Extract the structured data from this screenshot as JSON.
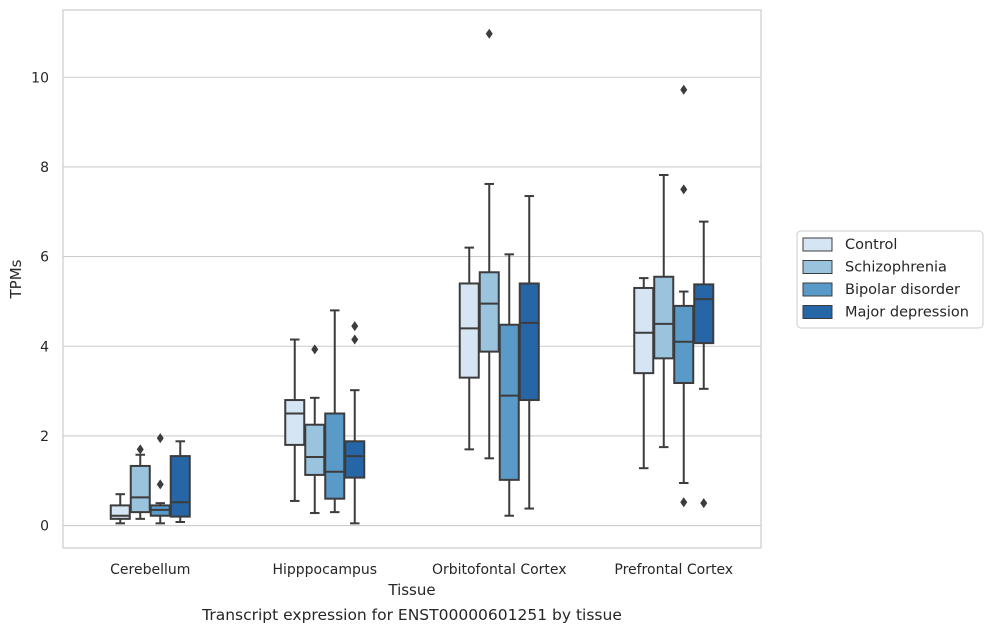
{
  "caption": "Transcript expression for ENST00000601251 by tissue",
  "chart_data": {
    "type": "box",
    "title": "",
    "xlabel": "Tissue",
    "ylabel": "TPMs",
    "ylim": [
      -0.5,
      11.5
    ],
    "yticks": [
      0,
      2,
      4,
      6,
      8,
      10
    ],
    "grid": "horizontal",
    "legend_position": "outside-right",
    "categories": [
      "Cerebellum",
      "Hipppocampus",
      "Orbitofontal Cortex",
      "Prefrontal Cortex"
    ],
    "series": [
      {
        "name": "Control",
        "color": "#d6e5f3",
        "boxes": [
          {
            "whislo": 0.05,
            "q1": 0.15,
            "med": 0.22,
            "q3": 0.45,
            "whishi": 0.7,
            "fliers": []
          },
          {
            "whislo": 0.55,
            "q1": 1.8,
            "med": 2.5,
            "q3": 2.8,
            "whishi": 4.15,
            "fliers": []
          },
          {
            "whislo": 1.7,
            "q1": 3.3,
            "med": 4.4,
            "q3": 5.4,
            "whishi": 6.2,
            "fliers": []
          },
          {
            "whislo": 1.28,
            "q1": 3.4,
            "med": 4.3,
            "q3": 5.3,
            "whishi": 5.52,
            "fliers": []
          }
        ]
      },
      {
        "name": "Schizophrenia",
        "color": "#9ac3dd",
        "boxes": [
          {
            "whislo": 0.15,
            "q1": 0.3,
            "med": 0.63,
            "q3": 1.33,
            "whishi": 1.58,
            "fliers": [
              1.7
            ]
          },
          {
            "whislo": 0.28,
            "q1": 1.13,
            "med": 1.53,
            "q3": 2.25,
            "whishi": 2.85,
            "fliers": [
              3.93
            ]
          },
          {
            "whislo": 1.5,
            "q1": 3.88,
            "med": 4.95,
            "q3": 5.65,
            "whishi": 7.62,
            "fliers": [
              10.97
            ]
          },
          {
            "whislo": 1.75,
            "q1": 3.73,
            "med": 4.5,
            "q3": 5.55,
            "whishi": 7.82,
            "fliers": []
          }
        ]
      },
      {
        "name": "Bipolar disorder",
        "color": "#5a9ac8",
        "boxes": [
          {
            "whislo": 0.05,
            "q1": 0.22,
            "med": 0.35,
            "q3": 0.45,
            "whishi": 0.5,
            "fliers": [
              0.92,
              1.95
            ]
          },
          {
            "whislo": 0.3,
            "q1": 0.6,
            "med": 1.2,
            "q3": 2.5,
            "whishi": 4.8,
            "fliers": []
          },
          {
            "whislo": 0.22,
            "q1": 1.02,
            "med": 2.9,
            "q3": 4.48,
            "whishi": 6.05,
            "fliers": []
          },
          {
            "whislo": 0.95,
            "q1": 3.18,
            "med": 4.1,
            "q3": 4.9,
            "whishi": 5.22,
            "fliers": [
              0.52,
              7.5,
              9.72
            ]
          }
        ]
      },
      {
        "name": "Major depression",
        "color": "#2666a6",
        "boxes": [
          {
            "whislo": 0.08,
            "q1": 0.2,
            "med": 0.52,
            "q3": 1.55,
            "whishi": 1.88,
            "fliers": []
          },
          {
            "whislo": 0.05,
            "q1": 1.07,
            "med": 1.55,
            "q3": 1.88,
            "whishi": 3.02,
            "fliers": [
              4.15,
              4.45
            ]
          },
          {
            "whislo": 0.38,
            "q1": 2.8,
            "med": 4.52,
            "q3": 5.4,
            "whishi": 7.35,
            "fliers": []
          },
          {
            "whislo": 3.05,
            "q1": 4.07,
            "med": 5.05,
            "q3": 5.38,
            "whishi": 6.78,
            "fliers": [
              0.5
            ]
          }
        ]
      }
    ]
  }
}
